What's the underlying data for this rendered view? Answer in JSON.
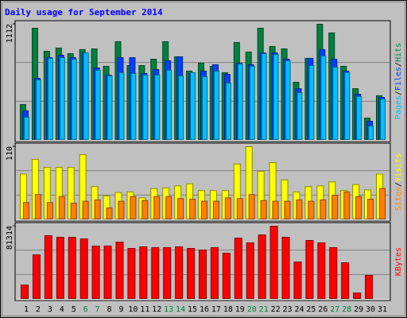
{
  "title": "Daily usage for September 2014",
  "categories": [
    "1",
    "2",
    "3",
    "4",
    "5",
    "6",
    "7",
    "8",
    "9",
    "10",
    "11",
    "12",
    "13",
    "14",
    "15",
    "16",
    "17",
    "18",
    "19",
    "20",
    "21",
    "22",
    "23",
    "24",
    "25",
    "26",
    "27",
    "28",
    "29",
    "30",
    "31"
  ],
  "category_colors": [
    "#000000",
    "#000000",
    "#000000",
    "#000000",
    "#000000",
    "#008040",
    "#008040",
    "#000000",
    "#000000",
    "#000000",
    "#000000",
    "#000000",
    "#008040",
    "#008040",
    "#000000",
    "#000000",
    "#000000",
    "#000000",
    "#000000",
    "#008040",
    "#008040",
    "#000000",
    "#000000",
    "#000000",
    "#000000",
    "#000000",
    "#008040",
    "#008040",
    "#000000",
    "#000000",
    "#000000"
  ],
  "legend_separator": "/",
  "chart_data": [
    {
      "type": "bar",
      "ylim": [
        0,
        1112
      ],
      "yticks": [
        1112
      ],
      "series": [
        {
          "name": "Hits",
          "color": "#008040",
          "values": [
            343,
            1074,
            853,
            884,
            830,
            869,
            876,
            709,
            945,
            716,
            716,
            777,
            945,
            800,
            663,
            739,
            709,
            648,
            937,
            846,
            1074,
            899,
            876,
            556,
            785,
            1112,
            1029,
            709,
            495,
            213,
            427
          ]
        },
        {
          "name": "Files",
          "color": "#0040ff",
          "values": [
            282,
            594,
            792,
            815,
            792,
            838,
            693,
            625,
            792,
            792,
            640,
            678,
            762,
            800,
            640,
            663,
            724,
            632,
            739,
            724,
            838,
            838,
            777,
            495,
            785,
            869,
            777,
            663,
            442,
            183,
            411
          ]
        },
        {
          "name": "Pages",
          "color": "#00c0ff",
          "values": [
            221,
            579,
            785,
            792,
            777,
            838,
            671,
            617,
            648,
            640,
            625,
            625,
            671,
            617,
            648,
            610,
            663,
            549,
            732,
            709,
            831,
            823,
            762,
            457,
            716,
            808,
            701,
            648,
            419,
            137,
            396
          ]
        }
      ]
    },
    {
      "type": "bar",
      "ylim": [
        0,
        110
      ],
      "yticks": [
        110
      ],
      "series": [
        {
          "name": "Visits",
          "color": "#ffff00",
          "values": [
            69,
            91,
            79,
            79,
            79,
            98,
            50,
            36,
            41,
            42,
            33,
            47,
            48,
            51,
            54,
            44,
            44,
            44,
            84,
            110,
            73,
            86,
            60,
            42,
            50,
            51,
            57,
            44,
            53,
            45,
            69
          ]
        },
        {
          "name": "Sites",
          "color": "#ff8000",
          "values": [
            26,
            38,
            26,
            35,
            25,
            28,
            30,
            18,
            28,
            35,
            29,
            35,
            35,
            32,
            31,
            28,
            28,
            33,
            32,
            38,
            29,
            28,
            28,
            30,
            28,
            30,
            37,
            42,
            35,
            31,
            47
          ]
        }
      ]
    },
    {
      "type": "bar",
      "ylim": [
        0,
        81314
      ],
      "yticks": [
        81314
      ],
      "series": [
        {
          "name": "KBytes",
          "color": "#ff0000",
          "values": [
            15912,
            49504,
            70720,
            68952,
            68952,
            67184,
            59228,
            59228,
            63648,
            56576,
            58344,
            57460,
            57460,
            58344,
            56576,
            54808,
            57460,
            51272,
            68068,
            62764,
            71604,
            81314,
            68952,
            41548,
            65416,
            62764,
            57460,
            40664,
            7072,
            26520,
            0
          ]
        }
      ]
    }
  ]
}
